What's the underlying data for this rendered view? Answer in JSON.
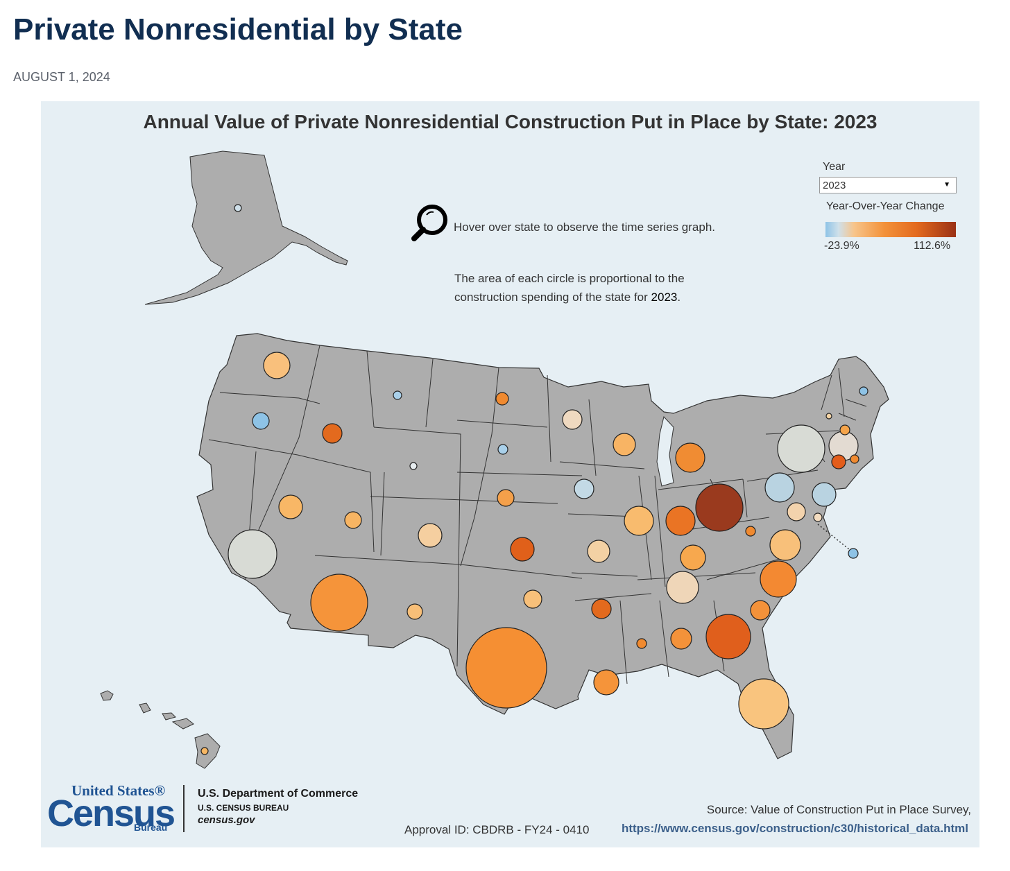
{
  "page": {
    "title": "Private Nonresidential by State",
    "date": "AUGUST 1, 2024"
  },
  "viz": {
    "title": "Annual Value of Private Nonresidential Construction Put in Place by State: 2023",
    "hint_hover": "Hover over state to observe the time series graph.",
    "hint_area_1": "The area of each circle is  proportional to the",
    "hint_area_2": "construction spending of the state for",
    "hint_area_year": "2023",
    "year_label": "Year",
    "year_value": "2023",
    "legend_title": "Year-Over-Year Change",
    "legend_min": "-23.9%",
    "legend_max": "112.6%"
  },
  "colors": {
    "state_fill": "#adadad",
    "background": "#e6eff4",
    "scale_low": "#8ec3e6",
    "scale_mid": "#f7c48a",
    "scale_high": "#9a3115"
  },
  "footer": {
    "logo_top": "United States®",
    "logo_main": "Census",
    "logo_bottom": "Bureau",
    "department": "U.S. Department of Commerce",
    "bureau": "U.S. CENSUS BUREAU",
    "site": "census.gov",
    "approval": "Approval ID: CBDRB - FY24 - 0410",
    "source": "Source: Value of Construction Put in Place Survey,",
    "source_url": "https://www.census.gov/construction/c30/historical_data.html"
  }
}
